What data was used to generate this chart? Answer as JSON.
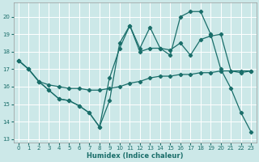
{
  "xlabel": "Humidex (Indice chaleur)",
  "bg_color": "#cce8e8",
  "grid_color": "#ffffff",
  "line_color": "#1a6e6a",
  "xlim": [
    -0.5,
    23.5
  ],
  "ylim": [
    12.8,
    20.8
  ],
  "yticks": [
    13,
    14,
    15,
    16,
    17,
    18,
    19,
    20
  ],
  "xticks": [
    0,
    1,
    2,
    3,
    4,
    5,
    6,
    7,
    8,
    9,
    10,
    11,
    12,
    13,
    14,
    15,
    16,
    17,
    18,
    19,
    20,
    21,
    22,
    23
  ],
  "series1_x": [
    0,
    1,
    2,
    3,
    4,
    5,
    6,
    7,
    8,
    9,
    10,
    11,
    12,
    13,
    14,
    15,
    16,
    17,
    18,
    19,
    20,
    21,
    22,
    23
  ],
  "series1_y": [
    17.5,
    17.0,
    16.3,
    16.1,
    16.0,
    15.9,
    15.9,
    15.8,
    15.8,
    15.9,
    16.0,
    16.2,
    16.3,
    16.5,
    16.6,
    16.6,
    16.7,
    16.7,
    16.8,
    16.8,
    16.9,
    16.9,
    16.9,
    16.9
  ],
  "series2_x": [
    0,
    1,
    2,
    3,
    4,
    5,
    6,
    7,
    8,
    9,
    10,
    11,
    12,
    13,
    14,
    15,
    16,
    17,
    18,
    19,
    20,
    21,
    22,
    23
  ],
  "series2_y": [
    17.5,
    17.0,
    16.3,
    15.8,
    15.3,
    15.2,
    14.9,
    14.5,
    13.7,
    15.2,
    18.5,
    19.5,
    18.2,
    19.4,
    18.2,
    17.8,
    20.0,
    20.3,
    20.3,
    19.0,
    17.0,
    15.9,
    14.5,
    13.4
  ],
  "series3_x": [
    0,
    1,
    2,
    3,
    4,
    5,
    6,
    7,
    8,
    9,
    10,
    11,
    12,
    13,
    14,
    15,
    16,
    17,
    18,
    19,
    20,
    21,
    22,
    23
  ],
  "series3_y": [
    17.5,
    17.0,
    16.3,
    15.8,
    15.3,
    15.2,
    14.9,
    14.5,
    13.7,
    16.5,
    18.2,
    19.5,
    18.0,
    18.2,
    18.2,
    18.1,
    18.5,
    17.8,
    18.7,
    18.9,
    19.0,
    16.9,
    16.8,
    16.9
  ]
}
